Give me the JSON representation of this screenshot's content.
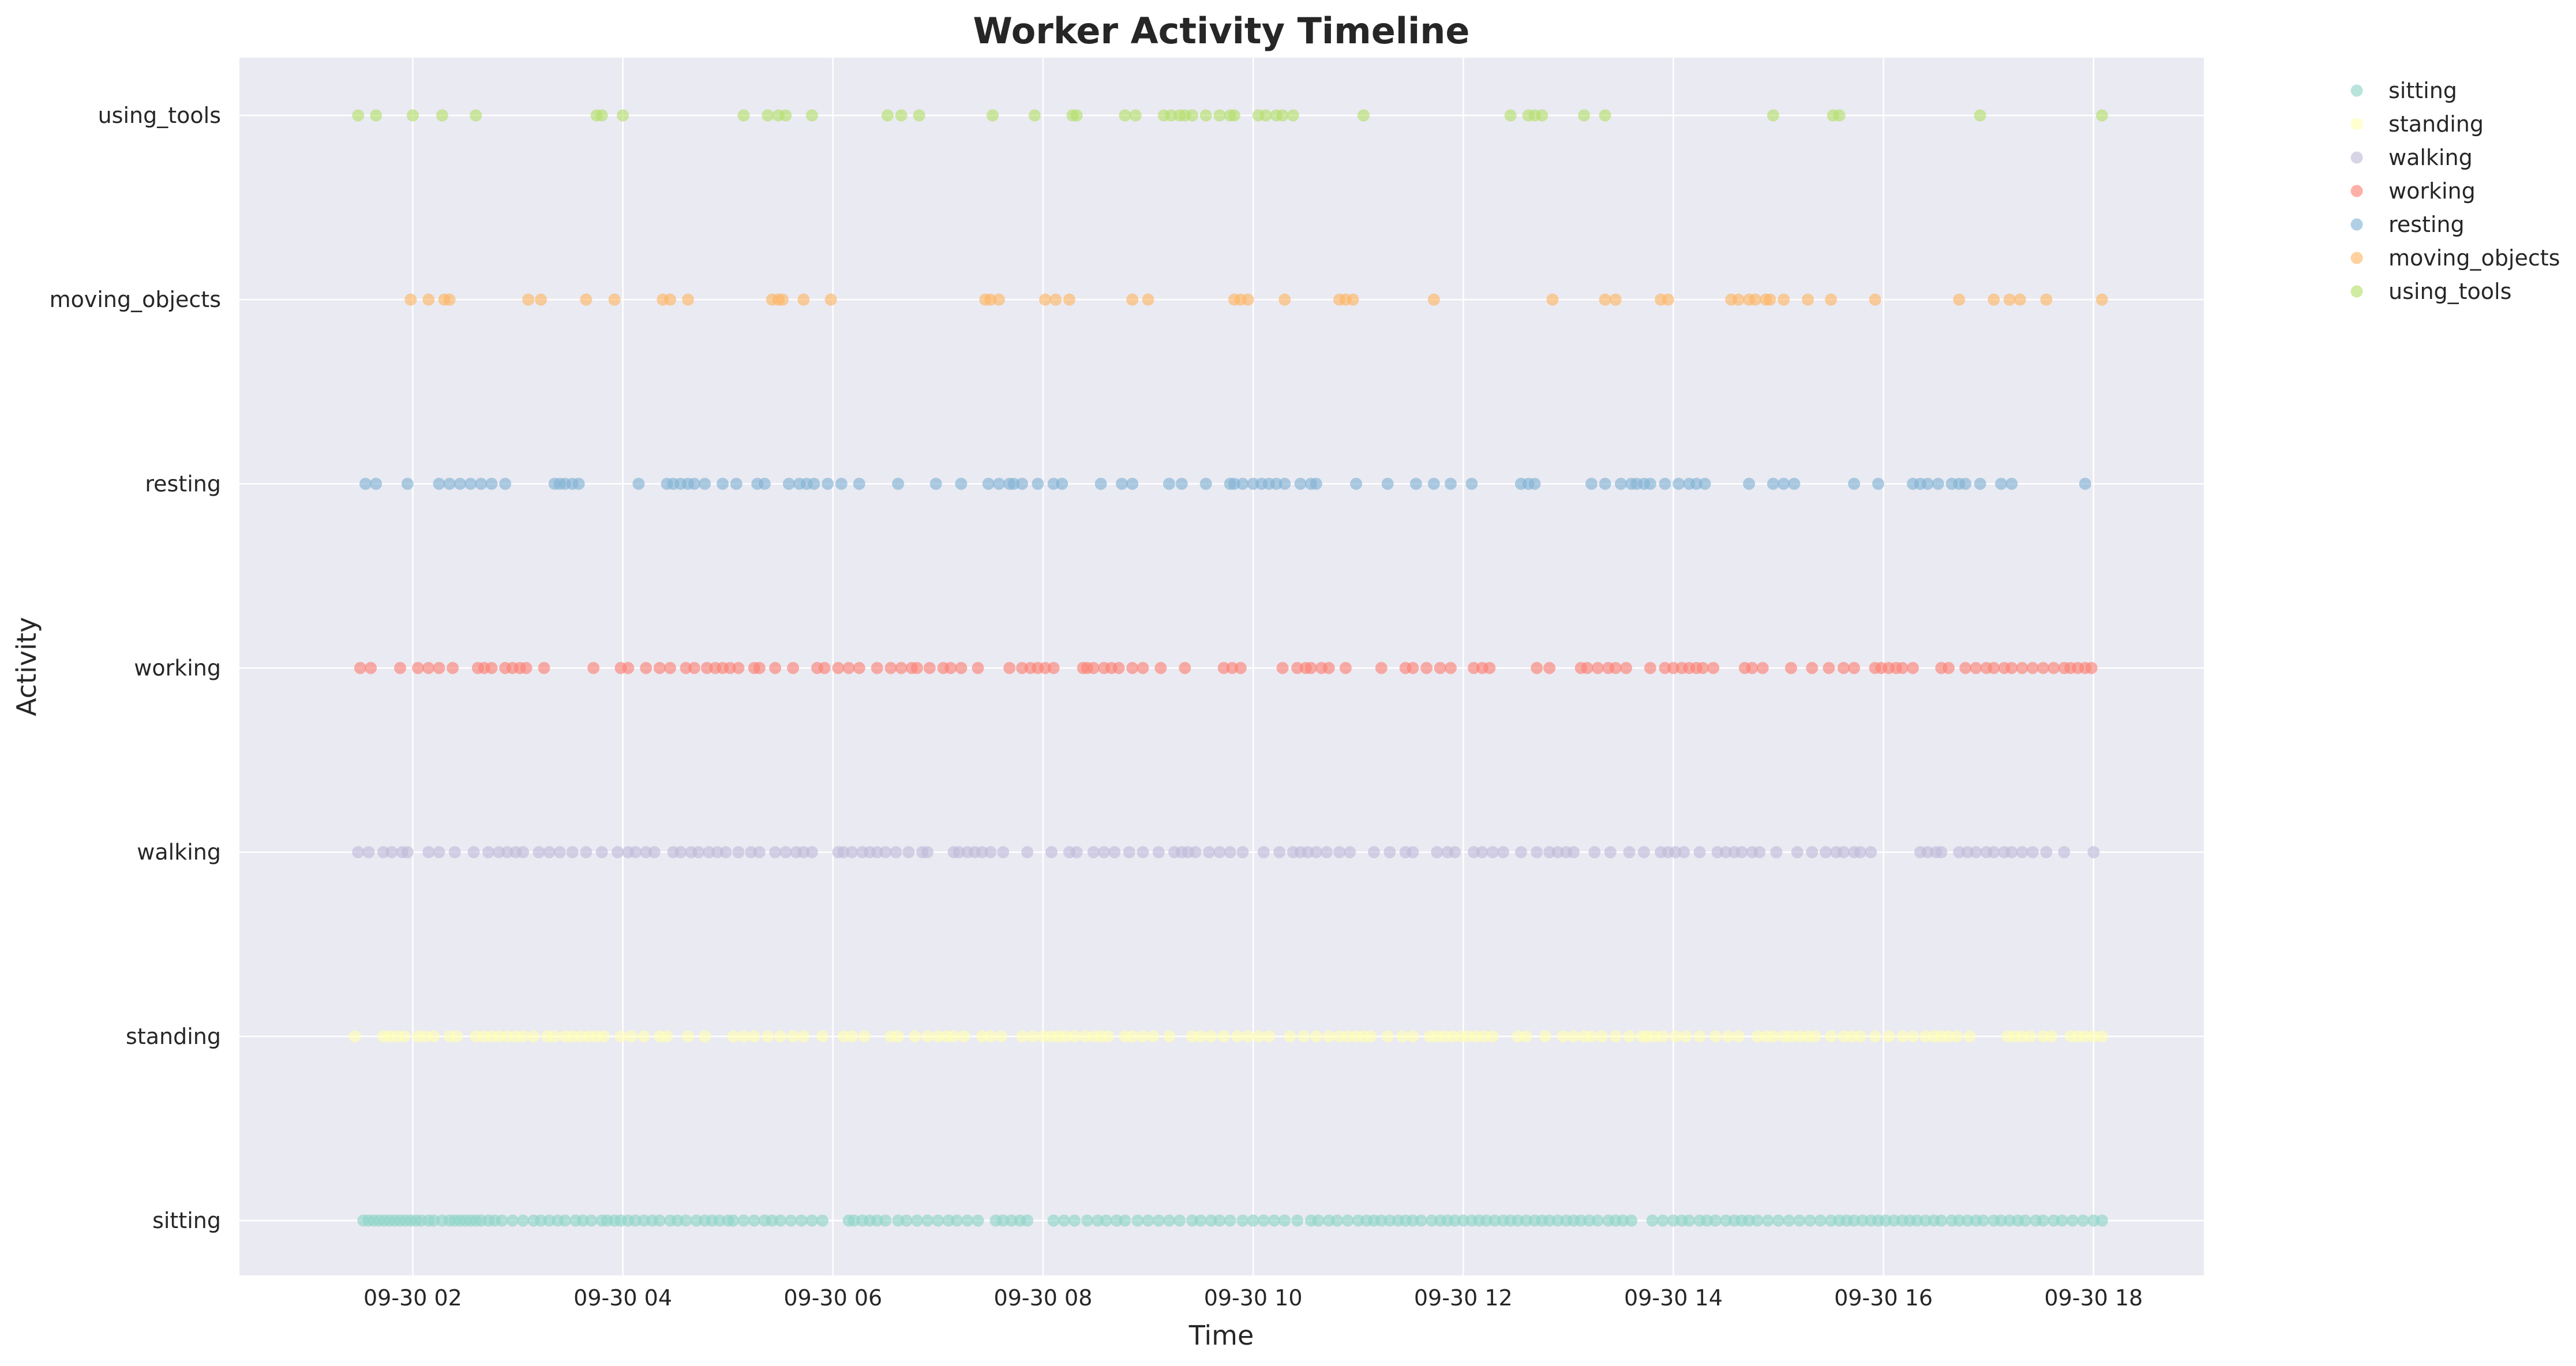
{
  "chart_data": {
    "type": "scatter",
    "title": "Worker Activity Timeline",
    "xlabel": "Time",
    "ylabel": "Activity",
    "x_tick_labels": [
      "09-30 02",
      "09-30 04",
      "09-30 06",
      "09-30 08",
      "09-30 10",
      "09-30 12",
      "09-30 14",
      "09-30 16",
      "09-30 18"
    ],
    "x_tick_hours": [
      2,
      4,
      6,
      8,
      10,
      12,
      14,
      16,
      18
    ],
    "xlim_hours": [
      0.35,
      19.05
    ],
    "categories": [
      "sitting",
      "standing",
      "walking",
      "working",
      "resting",
      "moving_objects",
      "using_tools"
    ],
    "grid": true,
    "legend_position": "upper right, outside plot",
    "background": "#EAEAF2",
    "series": [
      {
        "name": "sitting",
        "color": "#8DD3C7",
        "y": "sitting",
        "x_hours": [
          1.53,
          1.58,
          1.63,
          1.68,
          1.73,
          1.78,
          1.83,
          1.88,
          1.93,
          1.98,
          2.03,
          2.08,
          2.15,
          2.2,
          2.28,
          2.35,
          2.4,
          2.45,
          2.5,
          2.55,
          2.6,
          2.65,
          2.72,
          2.78,
          2.85,
          2.95,
          3.05,
          3.15,
          3.22,
          3.3,
          3.38,
          3.45,
          3.55,
          3.62,
          3.7,
          3.8,
          3.85,
          3.92,
          3.98,
          4.05,
          4.12,
          4.2,
          4.28,
          4.35,
          4.45,
          4.52,
          4.6,
          4.7,
          4.78,
          4.85,
          4.92,
          5.0,
          5.05,
          5.15,
          5.25,
          5.35,
          5.42,
          5.5,
          5.6,
          5.7,
          5.8,
          5.9,
          6.15,
          6.2,
          6.28,
          6.35,
          6.42,
          6.5,
          6.62,
          6.7,
          6.8,
          6.9,
          7.0,
          7.1,
          7.18,
          7.28,
          7.38,
          7.55,
          7.62,
          7.7,
          7.78,
          7.85,
          8.1,
          8.2,
          8.3,
          8.42,
          8.52,
          8.6,
          8.7,
          8.78,
          8.9,
          9.0,
          9.1,
          9.2,
          9.3,
          9.42,
          9.5,
          9.6,
          9.68,
          9.78,
          9.9,
          10.0,
          10.1,
          10.2,
          10.3,
          10.42,
          10.55,
          10.62,
          10.72,
          10.8,
          10.9,
          11.0,
          11.08,
          11.15,
          11.22,
          11.3,
          11.38,
          11.45,
          11.52,
          11.6,
          11.7,
          11.78,
          11.85,
          11.92,
          12.0,
          12.08,
          12.15,
          12.22,
          12.3,
          12.38,
          12.45,
          12.52,
          12.6,
          12.68,
          12.75,
          12.82,
          12.9,
          12.98,
          13.05,
          13.12,
          13.2,
          13.28,
          13.38,
          13.45,
          13.52,
          13.6,
          13.8,
          13.9,
          14.0,
          14.08,
          14.15,
          14.25,
          14.32,
          14.4,
          14.5,
          14.58,
          14.65,
          14.72,
          14.8,
          14.9,
          15.0,
          15.1,
          15.2,
          15.3,
          15.4,
          15.5,
          15.58,
          15.65,
          15.72,
          15.8,
          15.88,
          15.95,
          16.02,
          16.1,
          16.18,
          16.25,
          16.32,
          16.4,
          16.48,
          16.55,
          16.65,
          16.72,
          16.8,
          16.88,
          16.95,
          17.05,
          17.12,
          17.2,
          17.28,
          17.35,
          17.45,
          17.52,
          17.62,
          17.7,
          17.8,
          17.9,
          18.0,
          18.08
        ]
      },
      {
        "name": "standing",
        "color": "#FFFFB3",
        "y": "standing",
        "x_hours": [
          1.45,
          1.72,
          1.78,
          1.85,
          1.92,
          2.05,
          2.12,
          2.2,
          2.35,
          2.42,
          2.6,
          2.68,
          2.75,
          2.82,
          2.9,
          2.98,
          3.05,
          3.15,
          3.28,
          3.35,
          3.45,
          3.52,
          3.6,
          3.68,
          3.75,
          3.82,
          3.98,
          4.08,
          4.2,
          4.35,
          4.42,
          4.62,
          4.78,
          5.05,
          5.15,
          5.25,
          5.38,
          5.5,
          5.62,
          5.72,
          5.9,
          6.1,
          6.18,
          6.3,
          6.55,
          6.62,
          6.78,
          6.9,
          7.0,
          7.08,
          7.15,
          7.25,
          7.42,
          7.5,
          7.6,
          7.8,
          7.9,
          8.0,
          8.08,
          8.15,
          8.22,
          8.3,
          8.4,
          8.48,
          8.55,
          8.62,
          8.78,
          8.85,
          8.95,
          9.05,
          9.2,
          9.42,
          9.5,
          9.6,
          9.72,
          9.85,
          9.95,
          10.05,
          10.15,
          10.35,
          10.48,
          10.6,
          10.72,
          10.82,
          10.9,
          10.98,
          11.05,
          11.12,
          11.28,
          11.42,
          11.52,
          11.68,
          11.75,
          11.82,
          11.9,
          11.98,
          12.05,
          12.12,
          12.2,
          12.28,
          12.52,
          12.6,
          12.78,
          12.95,
          13.05,
          13.15,
          13.22,
          13.32,
          13.45,
          13.58,
          13.7,
          13.75,
          13.82,
          13.9,
          14.02,
          14.12,
          14.25,
          14.4,
          14.52,
          14.62,
          14.8,
          14.88,
          14.95,
          15.05,
          15.12,
          15.2,
          15.28,
          15.35,
          15.5,
          15.62,
          15.7,
          15.78,
          15.92,
          16.05,
          16.18,
          16.28,
          16.4,
          16.48,
          16.55,
          16.62,
          16.7,
          16.82,
          17.18,
          17.25,
          17.32,
          17.4,
          17.52,
          17.6,
          17.78,
          17.85,
          17.92,
          18.0,
          18.08
        ]
      },
      {
        "name": "walking",
        "color": "#BEBADA",
        "y": "walking",
        "x_hours": [
          1.48,
          1.58,
          1.72,
          1.8,
          1.9,
          1.95,
          2.15,
          2.25,
          2.4,
          2.58,
          2.72,
          2.82,
          2.9,
          2.98,
          3.05,
          3.2,
          3.3,
          3.4,
          3.52,
          3.65,
          3.8,
          3.95,
          4.05,
          4.12,
          4.22,
          4.3,
          4.48,
          4.55,
          4.65,
          4.72,
          4.82,
          4.9,
          4.98,
          5.1,
          5.22,
          5.3,
          5.45,
          5.55,
          5.65,
          5.72,
          5.8,
          6.05,
          6.1,
          6.18,
          6.28,
          6.35,
          6.42,
          6.5,
          6.6,
          6.72,
          6.85,
          6.9,
          7.15,
          7.2,
          7.28,
          7.35,
          7.42,
          7.5,
          7.62,
          7.85,
          8.08,
          8.25,
          8.32,
          8.48,
          8.58,
          8.68,
          8.82,
          8.95,
          9.1,
          9.25,
          9.32,
          9.38,
          9.45,
          9.58,
          9.68,
          9.78,
          9.9,
          10.1,
          10.25,
          10.38,
          10.45,
          10.52,
          10.6,
          10.7,
          10.82,
          10.92,
          11.15,
          11.3,
          11.45,
          11.52,
          11.75,
          11.85,
          11.92,
          12.1,
          12.18,
          12.28,
          12.38,
          12.55,
          12.7,
          12.82,
          12.9,
          12.98,
          13.05,
          13.25,
          13.4,
          13.58,
          13.72,
          13.88,
          13.95,
          14.02,
          14.1,
          14.25,
          14.42,
          14.5,
          14.58,
          14.65,
          14.75,
          14.82,
          14.98,
          15.18,
          15.32,
          15.45,
          15.55,
          15.62,
          15.72,
          15.78,
          15.88,
          16.35,
          16.42,
          16.5,
          16.55,
          16.72,
          16.8,
          16.88,
          16.98,
          17.05,
          17.15,
          17.22,
          17.32,
          17.42,
          17.55,
          17.72,
          18.0
        ]
      },
      {
        "name": "working",
        "color": "#FB8072",
        "y": "working",
        "x_hours": [
          1.5,
          1.6,
          1.88,
          2.05,
          2.15,
          2.25,
          2.38,
          2.62,
          2.68,
          2.75,
          2.88,
          2.95,
          3.02,
          3.08,
          3.25,
          3.72,
          3.98,
          4.05,
          4.22,
          4.35,
          4.45,
          4.6,
          4.68,
          4.8,
          4.88,
          4.95,
          5.02,
          5.1,
          5.25,
          5.3,
          5.45,
          5.62,
          5.85,
          5.92,
          6.05,
          6.15,
          6.25,
          6.42,
          6.55,
          6.65,
          6.75,
          6.8,
          6.92,
          7.05,
          7.12,
          7.22,
          7.38,
          7.68,
          7.8,
          7.88,
          7.95,
          8.02,
          8.1,
          8.38,
          8.42,
          8.48,
          8.58,
          8.65,
          8.72,
          8.85,
          8.95,
          9.12,
          9.35,
          9.72,
          9.8,
          9.88,
          10.28,
          10.42,
          10.5,
          10.55,
          10.65,
          10.72,
          10.88,
          11.22,
          11.45,
          11.52,
          11.65,
          11.78,
          11.88,
          12.1,
          12.18,
          12.25,
          12.7,
          12.82,
          13.12,
          13.18,
          13.28,
          13.38,
          13.45,
          13.55,
          13.78,
          13.92,
          14.0,
          14.08,
          14.15,
          14.22,
          14.28,
          14.38,
          14.68,
          14.75,
          14.85,
          15.12,
          15.32,
          15.48,
          15.62,
          15.72,
          15.92,
          15.98,
          16.05,
          16.12,
          16.18,
          16.28,
          16.55,
          16.62,
          16.78,
          16.88,
          16.98,
          17.05,
          17.15,
          17.22,
          17.32,
          17.42,
          17.52,
          17.62,
          17.72,
          17.78,
          17.85,
          17.92,
          17.98
        ]
      },
      {
        "name": "resting",
        "color": "#80B1D3",
        "y": "resting",
        "x_hours": [
          1.55,
          1.65,
          1.95,
          2.25,
          2.35,
          2.45,
          2.55,
          2.65,
          2.75,
          2.88,
          3.35,
          3.4,
          3.45,
          3.52,
          3.58,
          4.15,
          4.42,
          4.48,
          4.55,
          4.62,
          4.68,
          4.78,
          4.95,
          5.08,
          5.28,
          5.35,
          5.58,
          5.68,
          5.75,
          5.82,
          5.95,
          6.08,
          6.25,
          6.62,
          6.98,
          7.22,
          7.48,
          7.58,
          7.68,
          7.72,
          7.8,
          7.95,
          8.1,
          8.18,
          8.55,
          8.75,
          8.85,
          9.2,
          9.32,
          9.55,
          9.78,
          9.82,
          9.9,
          10.0,
          10.08,
          10.15,
          10.22,
          10.3,
          10.45,
          10.55,
          10.6,
          10.98,
          11.28,
          11.55,
          11.72,
          11.88,
          12.08,
          12.55,
          12.62,
          12.68,
          13.22,
          13.35,
          13.5,
          13.6,
          13.65,
          13.72,
          13.78,
          13.92,
          14.05,
          14.15,
          14.22,
          14.3,
          14.72,
          14.95,
          15.05,
          15.15,
          15.72,
          15.95,
          16.28,
          16.35,
          16.42,
          16.52,
          16.65,
          16.72,
          16.78,
          16.92,
          17.12,
          17.22,
          17.92
        ]
      },
      {
        "name": "moving_objects",
        "color": "#FDB462",
        "y": "moving_objects",
        "x_hours": [
          1.98,
          2.15,
          2.3,
          2.35,
          3.1,
          3.22,
          3.65,
          3.92,
          4.38,
          4.45,
          4.62,
          5.42,
          5.48,
          5.52,
          5.72,
          5.98,
          7.45,
          7.5,
          7.58,
          8.02,
          8.12,
          8.25,
          8.85,
          9.0,
          9.82,
          9.88,
          9.95,
          10.3,
          10.82,
          10.88,
          10.95,
          11.72,
          12.85,
          13.35,
          13.45,
          13.88,
          13.95,
          14.55,
          14.62,
          14.72,
          14.78,
          14.88,
          14.92,
          15.05,
          15.28,
          15.5,
          15.92,
          16.72,
          17.05,
          17.2,
          17.3,
          17.55,
          18.08
        ]
      },
      {
        "name": "using_tools",
        "color": "#B3DE69",
        "y": "using_tools",
        "x_hours": [
          1.48,
          1.65,
          2.0,
          2.28,
          2.6,
          3.75,
          3.8,
          4.0,
          5.15,
          5.38,
          5.48,
          5.55,
          5.8,
          6.52,
          6.65,
          6.82,
          7.52,
          7.92,
          8.28,
          8.32,
          8.78,
          8.88,
          9.15,
          9.22,
          9.3,
          9.35,
          9.42,
          9.55,
          9.68,
          9.78,
          9.82,
          10.05,
          10.12,
          10.22,
          10.28,
          10.38,
          11.05,
          12.45,
          12.62,
          12.68,
          12.75,
          13.15,
          13.35,
          14.95,
          15.52,
          15.58,
          16.92,
          18.08
        ]
      }
    ]
  }
}
